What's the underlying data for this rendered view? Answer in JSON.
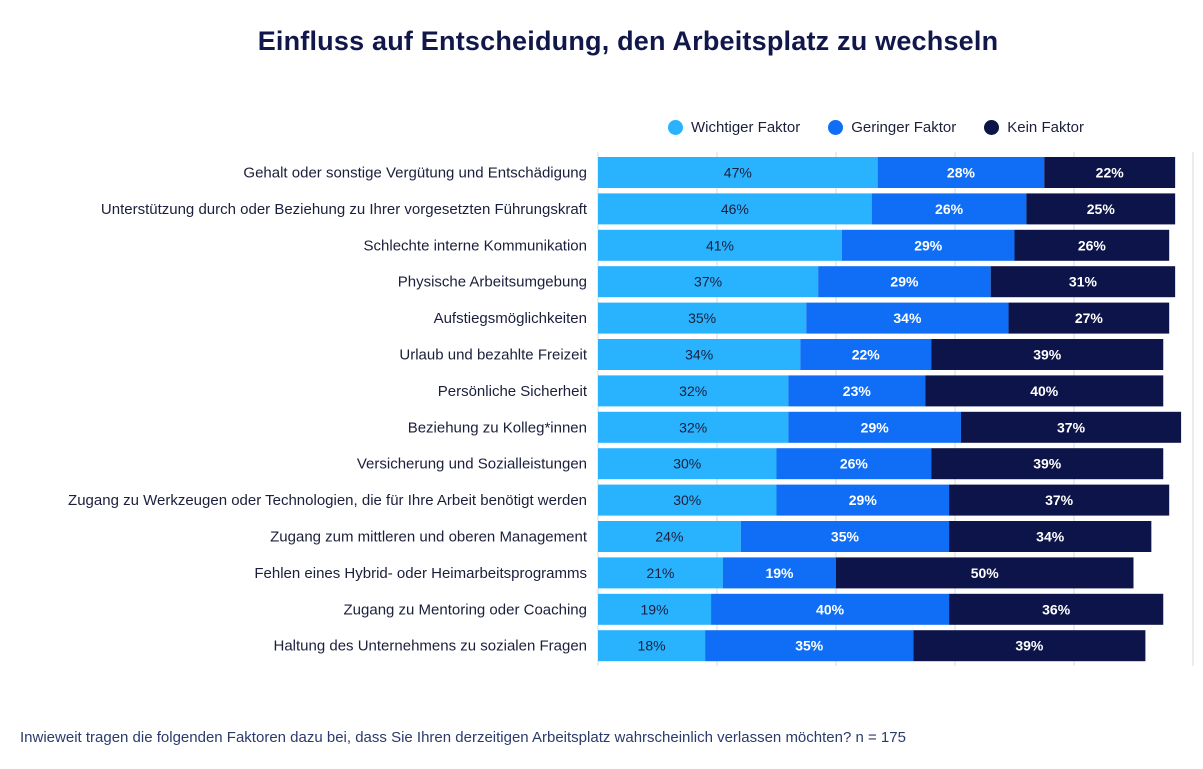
{
  "chart_data": {
    "type": "bar",
    "orientation": "horizontal",
    "stacked": true,
    "title": "Einfluss auf Entscheidung, den Arbeitsplatz zu wechseln",
    "legend_position": "top-right",
    "value_unit": "%",
    "categories": [
      "Gehalt oder sonstige Vergütung und Entschädigung",
      "Unterstützung durch oder Beziehung zu Ihrer vorgesetzten Führungskraft",
      "Schlechte interne Kommunikation",
      "Physische Arbeitsumgebung",
      "Aufstiegsmöglichkeiten",
      "Urlaub und bezahlte Freizeit",
      "Persönliche Sicherheit",
      "Beziehung zu Kolleg*innen",
      "Versicherung und Sozialleistungen",
      "Zugang zu Werkzeugen oder Technologien, die für Ihre Arbeit benötigt werden",
      "Zugang zum mittleren und oberen Management",
      "Fehlen eines Hybrid- oder Heimarbeitsprogramms",
      "Zugang zu Mentoring oder Coaching",
      "Haltung des Unternehmens zu sozialen Fragen"
    ],
    "series": [
      {
        "name": "Wichtiger Faktor",
        "color": "#29b2fd",
        "label_color": "#1b1f3b",
        "values": [
          47,
          46,
          41,
          37,
          35,
          34,
          32,
          32,
          30,
          30,
          24,
          21,
          19,
          18
        ]
      },
      {
        "name": "Geringer Faktor",
        "color": "#0f6ef5",
        "label_color": "#ffffff",
        "values": [
          28,
          26,
          29,
          29,
          34,
          22,
          23,
          29,
          26,
          29,
          35,
          19,
          40,
          35
        ]
      },
      {
        "name": "Kein Faktor",
        "color": "#0c1449",
        "label_color": "#ffffff",
        "values": [
          22,
          25,
          26,
          31,
          27,
          39,
          40,
          37,
          39,
          37,
          34,
          50,
          36,
          39
        ]
      }
    ],
    "xlim": [
      0,
      100
    ],
    "grid": true
  },
  "footnote": "Inwieweit tragen die folgenden Faktoren dazu bei, dass Sie Ihren derzeitigen Arbeitsplatz wahrscheinlich verlassen möchten? n = 175"
}
